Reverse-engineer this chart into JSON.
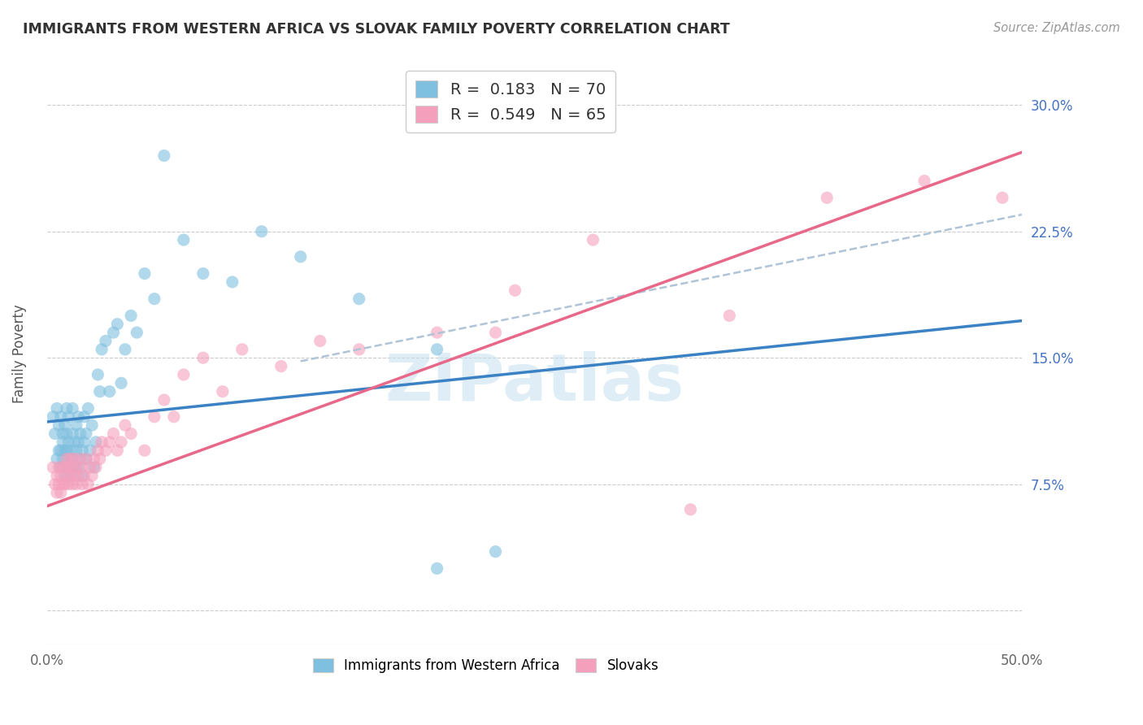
{
  "title": "IMMIGRANTS FROM WESTERN AFRICA VS SLOVAK FAMILY POVERTY CORRELATION CHART",
  "source": "Source: ZipAtlas.com",
  "ylabel": "Family Poverty",
  "x_min": 0.0,
  "x_max": 0.5,
  "y_min": -0.02,
  "y_max": 0.325,
  "y_ticks": [
    0.075,
    0.15,
    0.225,
    0.3
  ],
  "y_tick_labels": [
    "7.5%",
    "15.0%",
    "22.5%",
    "30.0%"
  ],
  "blue_color": "#7fbfdf",
  "pink_color": "#f4a0bc",
  "blue_line_color": "#3b82c4",
  "pink_line_color": "#e8688a",
  "dash_line_color": "#b0c4d8",
  "watermark_color": "#c5dff0",
  "legend_r_blue": "R =  0.183",
  "legend_n_blue": "N = 70",
  "legend_r_pink": "R =  0.549",
  "legend_n_pink": "N = 65",
  "blue_line_x": [
    0.0,
    0.5
  ],
  "blue_line_y": [
    0.112,
    0.172
  ],
  "pink_line_x": [
    0.0,
    0.5
  ],
  "pink_line_y": [
    0.062,
    0.272
  ],
  "dash_line_x": [
    0.13,
    0.5
  ],
  "dash_line_y": [
    0.148,
    0.235
  ],
  "blue_scatter_x": [
    0.003,
    0.004,
    0.005,
    0.005,
    0.006,
    0.006,
    0.007,
    0.007,
    0.007,
    0.008,
    0.008,
    0.008,
    0.009,
    0.009,
    0.009,
    0.01,
    0.01,
    0.01,
    0.01,
    0.011,
    0.011,
    0.011,
    0.012,
    0.012,
    0.013,
    0.013,
    0.013,
    0.014,
    0.014,
    0.015,
    0.015,
    0.016,
    0.016,
    0.016,
    0.017,
    0.017,
    0.018,
    0.018,
    0.019,
    0.019,
    0.02,
    0.02,
    0.021,
    0.022,
    0.023,
    0.024,
    0.025,
    0.026,
    0.027,
    0.028,
    0.03,
    0.032,
    0.034,
    0.036,
    0.038,
    0.04,
    0.043,
    0.046,
    0.05,
    0.055,
    0.06,
    0.07,
    0.08,
    0.095,
    0.11,
    0.13,
    0.16,
    0.2,
    0.23,
    0.2
  ],
  "blue_scatter_y": [
    0.115,
    0.105,
    0.12,
    0.09,
    0.095,
    0.11,
    0.095,
    0.115,
    0.085,
    0.1,
    0.09,
    0.105,
    0.08,
    0.095,
    0.11,
    0.085,
    0.095,
    0.105,
    0.12,
    0.09,
    0.1,
    0.115,
    0.08,
    0.095,
    0.09,
    0.105,
    0.12,
    0.085,
    0.1,
    0.095,
    0.11,
    0.085,
    0.1,
    0.115,
    0.09,
    0.105,
    0.08,
    0.095,
    0.1,
    0.115,
    0.09,
    0.105,
    0.12,
    0.095,
    0.11,
    0.085,
    0.1,
    0.14,
    0.13,
    0.155,
    0.16,
    0.13,
    0.165,
    0.17,
    0.135,
    0.155,
    0.175,
    0.165,
    0.2,
    0.185,
    0.27,
    0.22,
    0.2,
    0.195,
    0.225,
    0.21,
    0.185,
    0.155,
    0.035,
    0.025
  ],
  "pink_scatter_x": [
    0.003,
    0.004,
    0.005,
    0.005,
    0.006,
    0.006,
    0.007,
    0.007,
    0.008,
    0.008,
    0.009,
    0.009,
    0.01,
    0.01,
    0.011,
    0.011,
    0.012,
    0.012,
    0.013,
    0.013,
    0.014,
    0.014,
    0.015,
    0.015,
    0.016,
    0.017,
    0.018,
    0.018,
    0.019,
    0.02,
    0.021,
    0.022,
    0.023,
    0.024,
    0.025,
    0.026,
    0.027,
    0.028,
    0.03,
    0.032,
    0.034,
    0.036,
    0.038,
    0.04,
    0.043,
    0.05,
    0.055,
    0.06,
    0.065,
    0.07,
    0.08,
    0.09,
    0.1,
    0.12,
    0.14,
    0.16,
    0.2,
    0.24,
    0.28,
    0.35,
    0.4,
    0.45,
    0.49,
    0.33,
    0.23
  ],
  "pink_scatter_y": [
    0.085,
    0.075,
    0.08,
    0.07,
    0.085,
    0.075,
    0.08,
    0.07,
    0.085,
    0.075,
    0.085,
    0.075,
    0.08,
    0.09,
    0.075,
    0.085,
    0.08,
    0.09,
    0.075,
    0.085,
    0.08,
    0.09,
    0.075,
    0.085,
    0.08,
    0.09,
    0.075,
    0.085,
    0.08,
    0.09,
    0.075,
    0.085,
    0.08,
    0.09,
    0.085,
    0.095,
    0.09,
    0.1,
    0.095,
    0.1,
    0.105,
    0.095,
    0.1,
    0.11,
    0.105,
    0.095,
    0.115,
    0.125,
    0.115,
    0.14,
    0.15,
    0.13,
    0.155,
    0.145,
    0.16,
    0.155,
    0.165,
    0.19,
    0.22,
    0.175,
    0.245,
    0.255,
    0.245,
    0.06,
    0.165
  ]
}
